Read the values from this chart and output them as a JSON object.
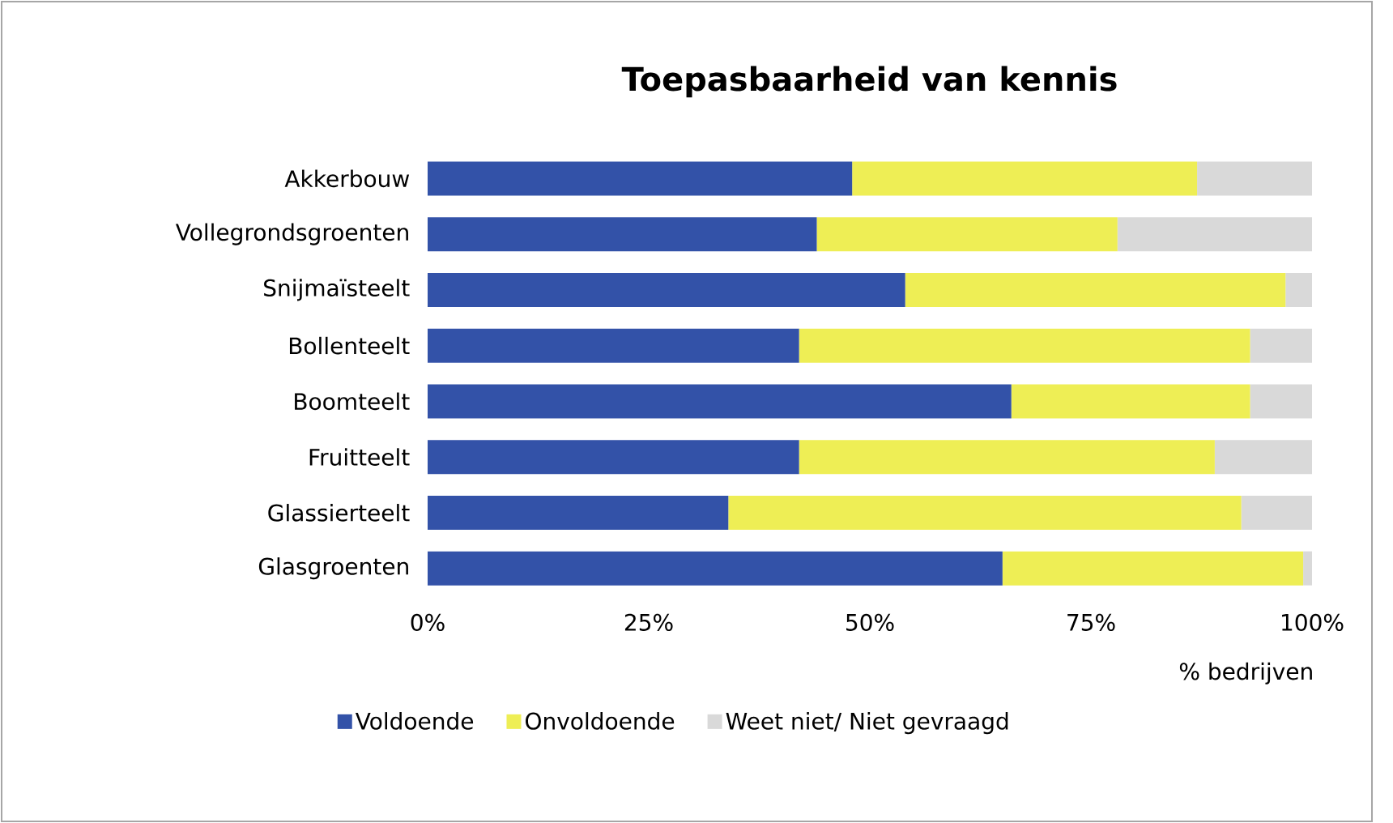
{
  "chart_data": {
    "type": "bar",
    "orientation": "horizontal",
    "stacked": true,
    "title": "Toepasbaarheid van kennis",
    "xlabel": "% bedrijven",
    "categories": [
      "Akkerbouw",
      "Vollegrondsgroenten",
      "Snijmaïsteelt",
      "Bollenteelt",
      "Boomteelt",
      "Fruitteelt",
      "Glassierteelt",
      "Glasgroenten"
    ],
    "series": [
      {
        "name": "Voldoende",
        "color": "#3352a8",
        "values": [
          48,
          44,
          54,
          42,
          66,
          42,
          34,
          65
        ]
      },
      {
        "name": "Onvoldoende",
        "color": "#eeee55",
        "values": [
          39,
          34,
          43,
          51,
          27,
          47,
          58,
          34
        ]
      },
      {
        "name": "Weet niet/ Niet gevraagd",
        "color": "#d9d9d9",
        "values": [
          13,
          22,
          3,
          7,
          7,
          11,
          8,
          1
        ]
      }
    ],
    "xlim": [
      0,
      100
    ],
    "xticks": [
      {
        "value": 0,
        "label": "0%"
      },
      {
        "value": 25,
        "label": "25%"
      },
      {
        "value": 50,
        "label": "50%"
      },
      {
        "value": 75,
        "label": "75%"
      },
      {
        "value": 100,
        "label": "100%"
      }
    ],
    "grid": false,
    "legend": "bottom"
  }
}
